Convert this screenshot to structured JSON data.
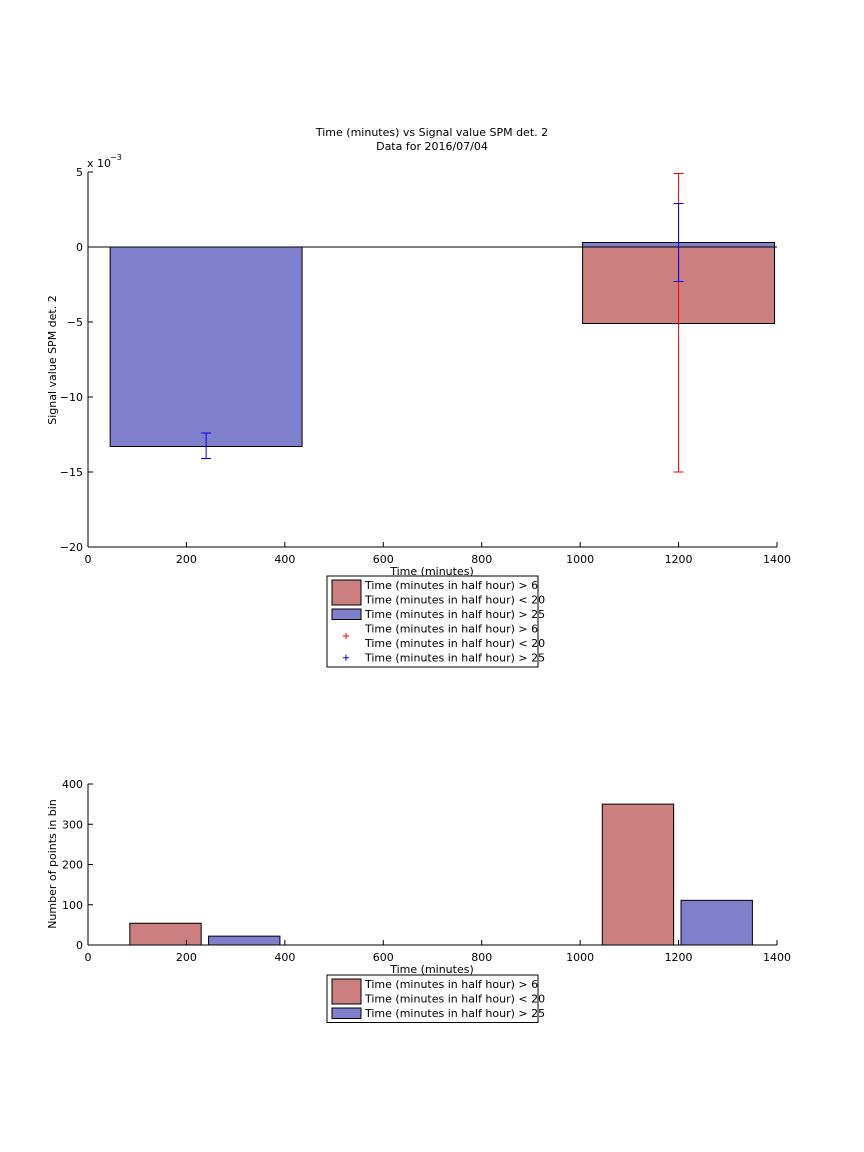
{
  "chart_data": [
    {
      "type": "bar",
      "title": "Time (minutes) vs Signal value SPM det. 2",
      "subtitle": "Data for 2016/07/04",
      "xlabel": "Time (minutes)",
      "ylabel": "Signal value SPM det. 2",
      "xlim": [
        0,
        1400
      ],
      "ylim": [
        -0.02,
        0.005
      ],
      "xticks": [
        "0",
        "200",
        "400",
        "600",
        "800",
        "1000",
        "1200",
        "1400"
      ],
      "yticks": [
        "−20",
        "−15",
        "−10",
        "−5",
        "0",
        "5"
      ],
      "yexponent_base": "x 10",
      "yexponent_power": "−3",
      "grid": false,
      "baseline": 0,
      "legend_position": "below",
      "series": [
        {
          "name": "Time (minutes in half hour) > 6 Time (minutes in half hour) < 20",
          "color": "#cc7f7f",
          "error_color": "#ff0000",
          "bars": [
            {
              "x_start": 1005,
              "x_end": 1395,
              "value": -0.0051
            }
          ],
          "errors": [
            {
              "x": 1200,
              "low": -0.015,
              "high": 0.0049
            }
          ]
        },
        {
          "name": "Time (minutes in half hour) > 25",
          "color": "#7f7fcc",
          "error_color": "#0000ff",
          "bars": [
            {
              "x_start": 45,
              "x_end": 435,
              "value": -0.0133
            },
            {
              "x_start": 1005,
              "x_end": 1395,
              "value": 0.0003
            }
          ],
          "errors": [
            {
              "x": 240,
              "low": -0.0141,
              "high": -0.0124
            },
            {
              "x": 1200,
              "low": -0.0023,
              "high": 0.0029
            }
          ]
        }
      ],
      "legend": {
        "entries": [
          {
            "type": "patch",
            "series": 0,
            "lines": [
              "Time (minutes in half hour) > 6",
              "Time (minutes in half hour) < 20"
            ]
          },
          {
            "type": "patch",
            "series": 1,
            "lines": [
              "Time (minutes in half hour) > 25"
            ]
          },
          {
            "type": "marker",
            "series": 0,
            "lines": [
              "Time (minutes in half hour) > 6",
              "Time (minutes in half hour) < 20"
            ]
          },
          {
            "type": "marker",
            "series": 1,
            "lines": [
              "Time (minutes in half hour) > 25"
            ]
          }
        ]
      }
    },
    {
      "type": "bar",
      "title": "",
      "xlabel": "Time (minutes)",
      "ylabel": "Number of points in bin",
      "xlim": [
        0,
        1400
      ],
      "ylim": [
        0,
        400
      ],
      "xticks": [
        "0",
        "200",
        "400",
        "600",
        "800",
        "1000",
        "1200",
        "1400"
      ],
      "yticks": [
        "0",
        "100",
        "200",
        "300",
        "400"
      ],
      "grid": false,
      "legend_position": "below",
      "series": [
        {
          "name": "Time (minutes in half hour) > 6 Time (minutes in half hour) < 20",
          "color": "#cc7f7f",
          "bars": [
            {
              "x_start": 85,
              "x_end": 230,
              "value": 54
            },
            {
              "x_start": 1045,
              "x_end": 1190,
              "value": 350
            }
          ]
        },
        {
          "name": "Time (minutes in half hour) > 25",
          "color": "#7f7fcc",
          "bars": [
            {
              "x_start": 245,
              "x_end": 390,
              "value": 22
            },
            {
              "x_start": 1205,
              "x_end": 1350,
              "value": 111
            }
          ]
        }
      ],
      "legend": {
        "entries": [
          {
            "type": "patch",
            "series": 0,
            "lines": [
              "Time (minutes in half hour) > 6",
              "Time (minutes in half hour) < 20"
            ]
          },
          {
            "type": "patch",
            "series": 1,
            "lines": [
              "Time (minutes in half hour) > 25"
            ]
          }
        ]
      }
    }
  ]
}
